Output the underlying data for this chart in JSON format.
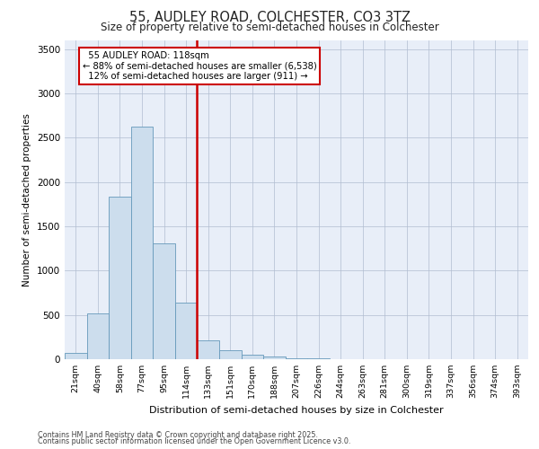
{
  "title_line1": "55, AUDLEY ROAD, COLCHESTER, CO3 3TZ",
  "title_line2": "Size of property relative to semi-detached houses in Colchester",
  "xlabel": "Distribution of semi-detached houses by size in Colchester",
  "ylabel": "Number of semi-detached properties",
  "categories": [
    "21sqm",
    "40sqm",
    "58sqm",
    "77sqm",
    "95sqm",
    "114sqm",
    "133sqm",
    "151sqm",
    "170sqm",
    "188sqm",
    "207sqm",
    "226sqm",
    "244sqm",
    "263sqm",
    "281sqm",
    "300sqm",
    "319sqm",
    "337sqm",
    "356sqm",
    "374sqm",
    "393sqm"
  ],
  "values": [
    75,
    520,
    1840,
    2630,
    1310,
    640,
    210,
    100,
    55,
    30,
    15,
    8,
    5,
    3,
    2,
    1,
    1,
    0,
    0,
    0,
    0
  ],
  "bar_color": "#ccdded",
  "bar_edge_color": "#6699bb",
  "vline_color": "#cc0000",
  "annotation_title": "55 AUDLEY ROAD: 118sqm",
  "annotation_line1": "← 88% of semi-detached houses are smaller (6,538)",
  "annotation_line2": "12% of semi-detached houses are larger (911) →",
  "annotation_box_facecolor": "#ffffff",
  "annotation_box_edgecolor": "#cc0000",
  "ylim": [
    0,
    3600
  ],
  "yticks": [
    0,
    500,
    1000,
    1500,
    2000,
    2500,
    3000,
    3500
  ],
  "plot_background": "#e8eef8",
  "footnote_line1": "Contains HM Land Registry data © Crown copyright and database right 2025.",
  "footnote_line2": "Contains public sector information licensed under the Open Government Licence v3.0."
}
